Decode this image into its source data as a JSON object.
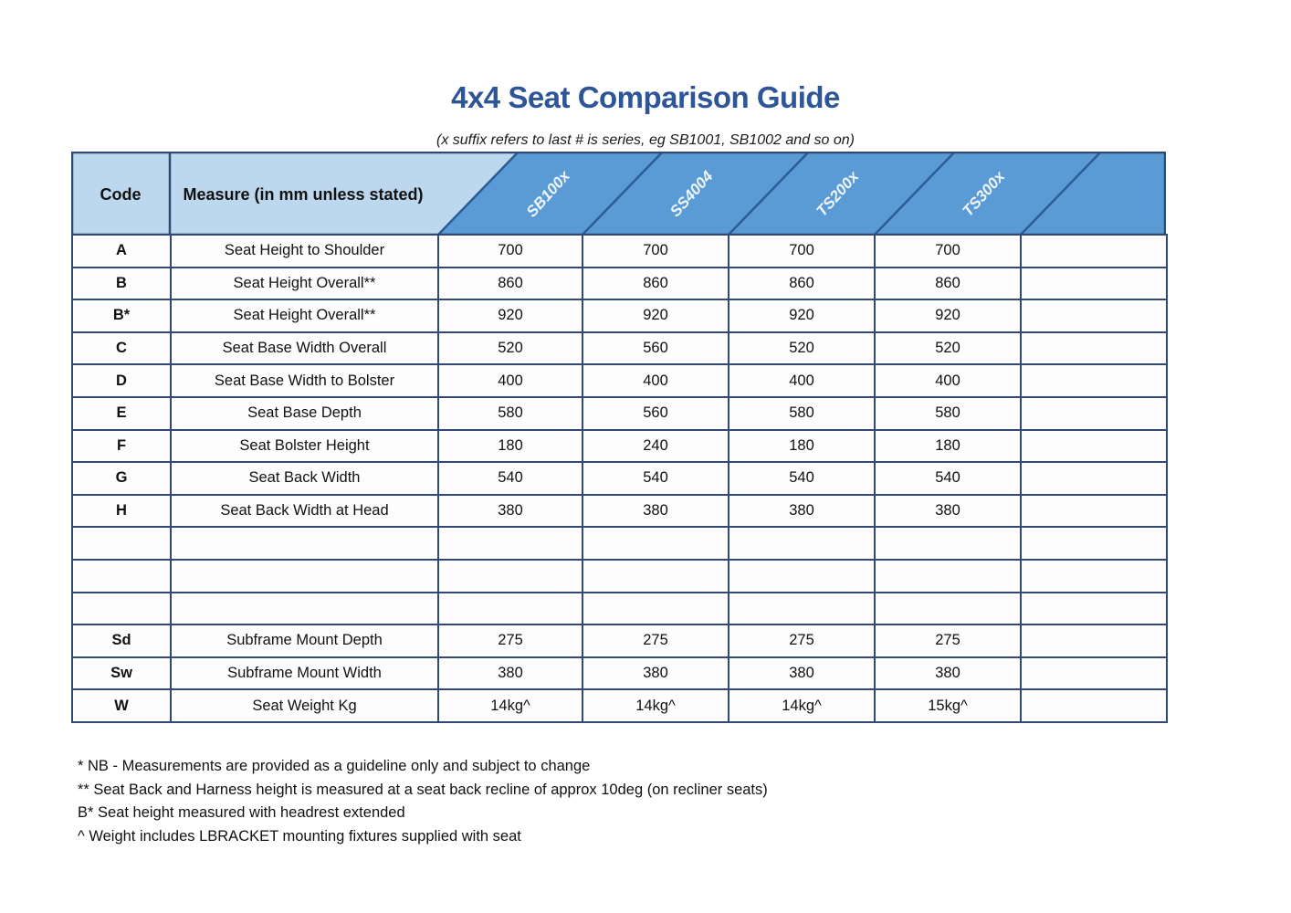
{
  "title": "4x4 Seat Comparison Guide",
  "subtitle": "(x suffix refers to last # is series, eg SB1001, SB1002 and so on)",
  "table": {
    "code_header": "Code",
    "measure_header": "Measure (in mm unless stated)",
    "products": [
      "SB100x",
      "SS4004",
      "TS200x",
      "TS300x"
    ],
    "rows": [
      {
        "code": "A",
        "measure": "Seat Height to Shoulder",
        "values": [
          "700",
          "700",
          "700",
          "700"
        ]
      },
      {
        "code": "B",
        "measure": "Seat Height Overall**",
        "values": [
          "860",
          "860",
          "860",
          "860"
        ]
      },
      {
        "code": "B*",
        "measure": "Seat Height Overall**",
        "values": [
          "920",
          "920",
          "920",
          "920"
        ]
      },
      {
        "code": "C",
        "measure": "Seat Base Width Overall",
        "values": [
          "520",
          "560",
          "520",
          "520"
        ]
      },
      {
        "code": "D",
        "measure": "Seat Base Width to Bolster",
        "values": [
          "400",
          "400",
          "400",
          "400"
        ]
      },
      {
        "code": "E",
        "measure": "Seat Base Depth",
        "values": [
          "580",
          "560",
          "580",
          "580"
        ]
      },
      {
        "code": "F",
        "measure": "Seat Bolster Height",
        "values": [
          "180",
          "240",
          "180",
          "180"
        ]
      },
      {
        "code": "G",
        "measure": "Seat Back Width",
        "values": [
          "540",
          "540",
          "540",
          "540"
        ]
      },
      {
        "code": "H",
        "measure": "Seat Back Width at Head",
        "values": [
          "380",
          "380",
          "380",
          "380"
        ]
      },
      {
        "code": "",
        "measure": "",
        "values": [
          "",
          "",
          "",
          ""
        ]
      },
      {
        "code": "",
        "measure": "",
        "values": [
          "",
          "",
          "",
          ""
        ]
      },
      {
        "code": "",
        "measure": "",
        "values": [
          "",
          "",
          "",
          ""
        ]
      },
      {
        "code": "Sd",
        "measure": "Subframe Mount Depth",
        "values": [
          "275",
          "275",
          "275",
          "275"
        ]
      },
      {
        "code": "Sw",
        "measure": "Subframe Mount Width",
        "values": [
          "380",
          "380",
          "380",
          "380"
        ]
      },
      {
        "code": "W",
        "measure": "Seat Weight Kg",
        "values": [
          "14kg^",
          "14kg^",
          "14kg^",
          "15kg^"
        ]
      }
    ]
  },
  "notes": [
    "* NB - Measurements are provided as a guideline only and subject to change",
    "** Seat Back and Harness height is measured at a seat back recline of approx 10deg (on recliner seats)",
    "B* Seat height measured with headrest extended",
    "^ Weight includes LBRACKET mounting fixtures supplied with seat"
  ],
  "colors": {
    "title_blue": "#2e5597",
    "header_dark_blue": "#5b9bd5",
    "header_light_blue": "#bdd7ee",
    "grid_border": "#2e4a72",
    "diagonal_line": "#2b5c94",
    "product_label_text": "#eef5fc"
  }
}
